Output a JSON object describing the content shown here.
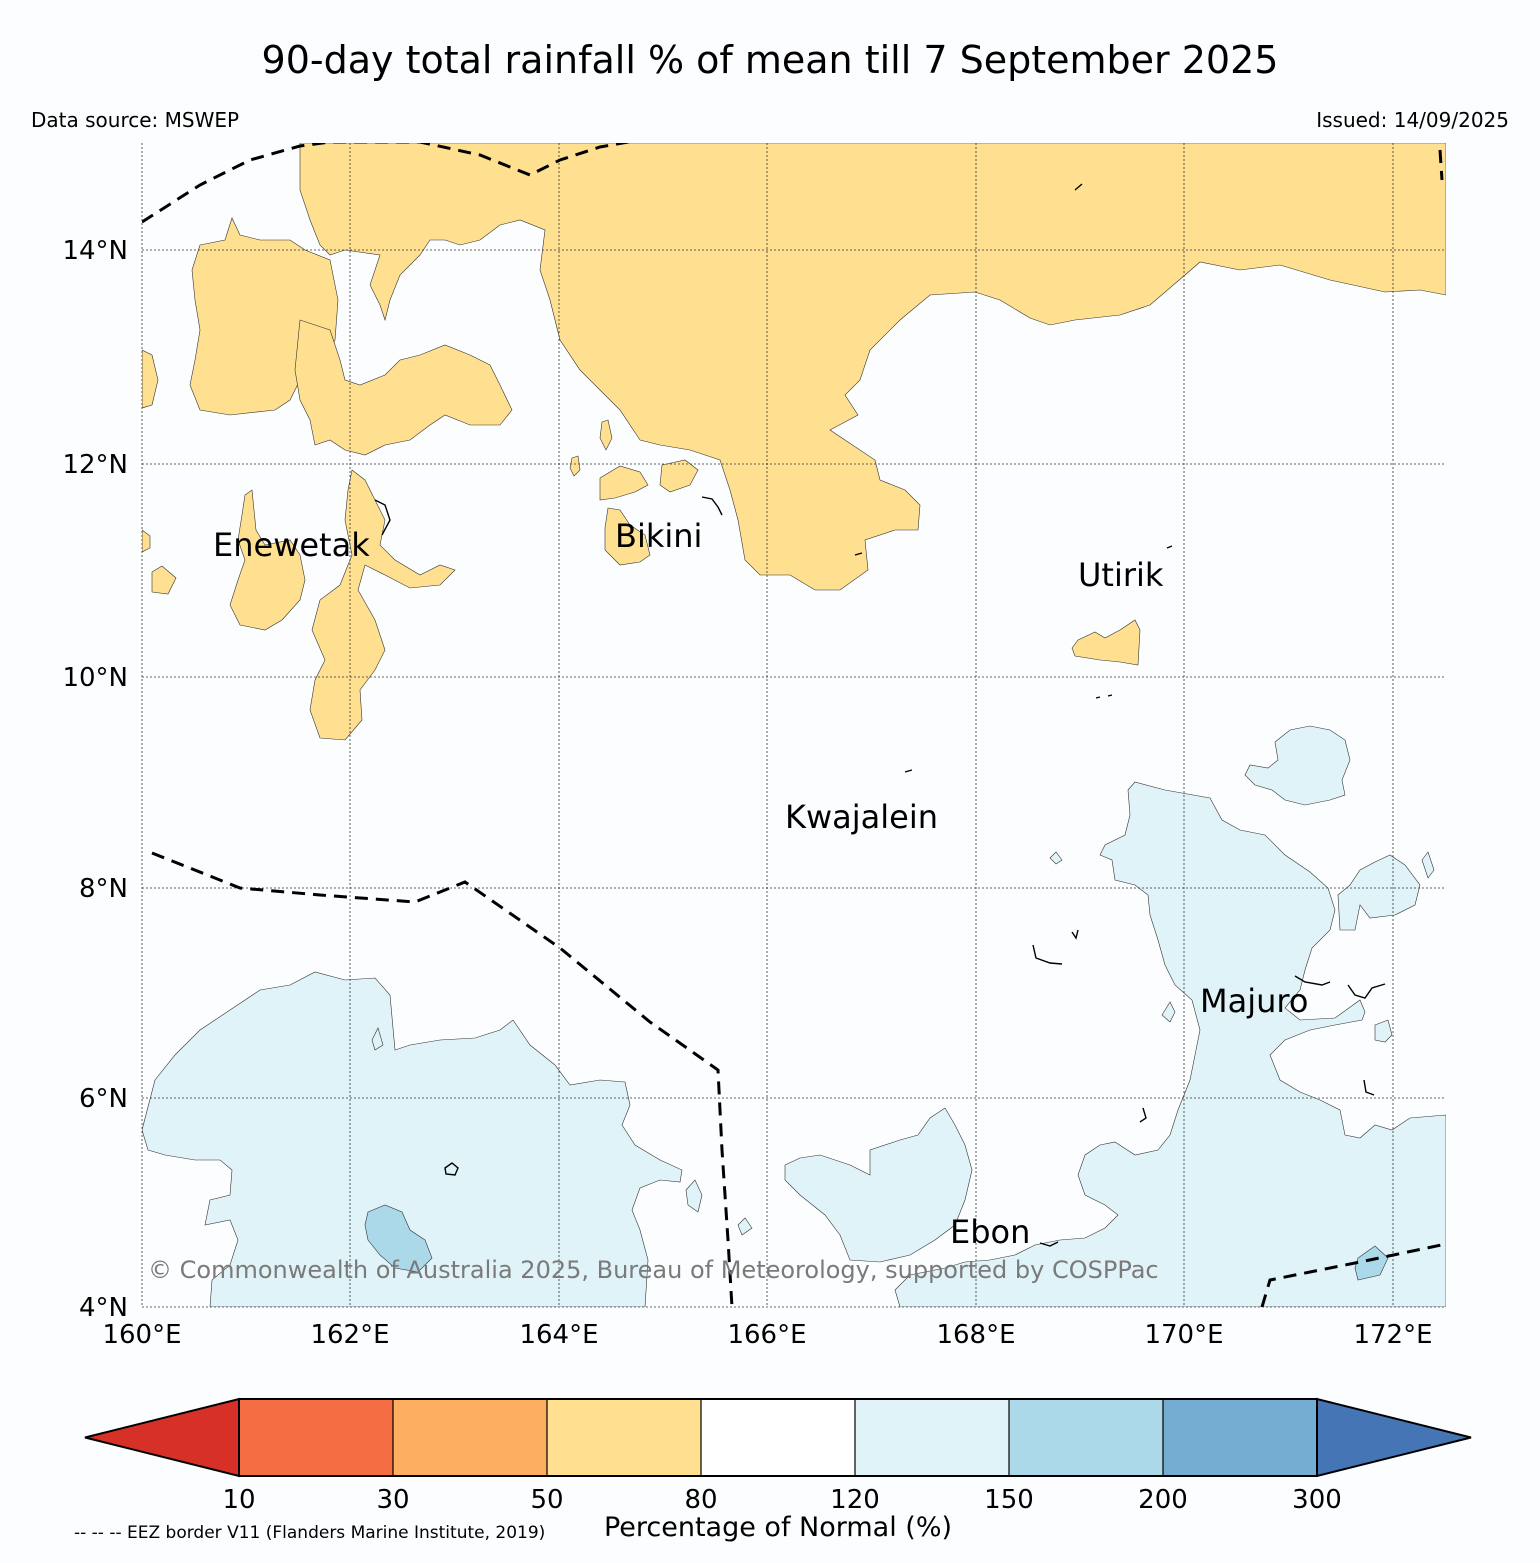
{
  "title": "90-day total rainfall % of mean till 7 September 2025",
  "data_source": "Data source: MSWEP",
  "issued": "Issued: 14/09/2025",
  "copyright": "© Commonwealth of Australia 2025, Bureau of Meteorology, supported by COSPPac",
  "footnote": "-- -- -- EEZ border V11 (Flanders Marine Institute, 2019)",
  "map": {
    "lon_range": [
      160,
      172.5
    ],
    "lat_range": [
      4,
      15
    ],
    "lon_ticks": [
      "160°E",
      "162°E",
      "164°E",
      "166°E",
      "168°E",
      "170°E",
      "172°E"
    ],
    "lat_ticks": [
      "4°N",
      "6°N",
      "8°N",
      "10°N",
      "12°N",
      "14°N"
    ],
    "places": [
      {
        "name": "Enewetak"
      },
      {
        "name": "Bikini"
      },
      {
        "name": "Utirik"
      },
      {
        "name": "Kwajalein"
      },
      {
        "name": "Majuro"
      },
      {
        "name": "Ebon"
      }
    ]
  },
  "colorbar": {
    "title": "Percentage of Normal (%)",
    "boundaries": [
      "10",
      "30",
      "50",
      "80",
      "120",
      "150",
      "200",
      "300"
    ],
    "colors": [
      "#d73027",
      "#f46d43",
      "#fdae61",
      "#fee090",
      "#ffffff",
      "#e0f3f8",
      "#abd9e9",
      "#74add1",
      "#4575b4"
    ]
  }
}
